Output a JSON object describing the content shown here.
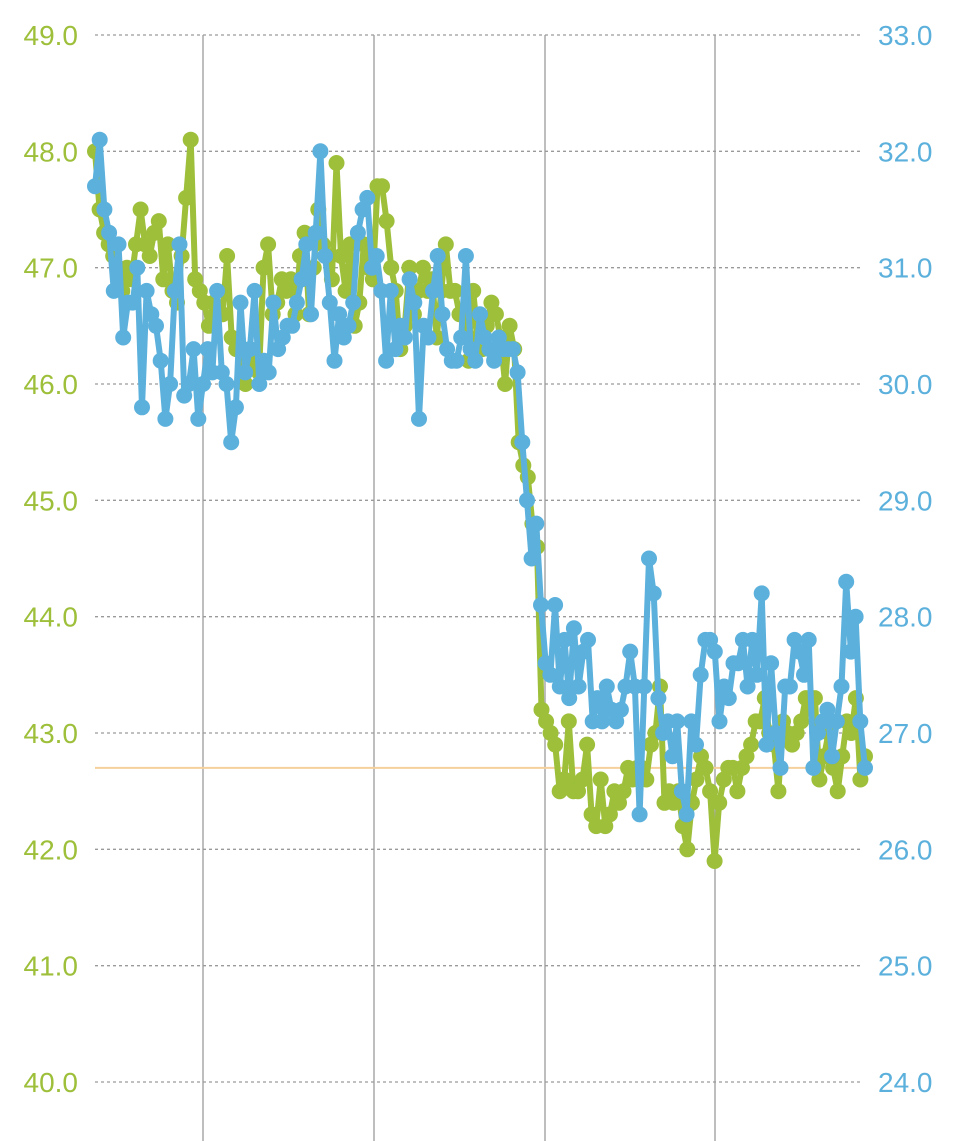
{
  "colors": {
    "left_series": "#9dbf3a",
    "right_series": "#5bb0dc",
    "reference_line": "#f5cf9c",
    "grid": "#9a9a9a",
    "vertical_grid": "#a8a8a8"
  },
  "chart_data": {
    "type": "line",
    "title": "",
    "xlabel": "",
    "grid": true,
    "vertical_gridline_count": 4,
    "left_axis": {
      "ylim": [
        40.0,
        49.0
      ],
      "tick_labels": [
        "49.0",
        "48.0",
        "47.0",
        "46.0",
        "45.0",
        "44.0",
        "43.0",
        "42.0",
        "41.0",
        "40.0"
      ],
      "reference_value": 42.7
    },
    "right_axis": {
      "ylim": [
        24.0,
        33.0
      ],
      "tick_labels": [
        "33.0",
        "32.0",
        "31.0",
        "30.0",
        "29.0",
        "28.0",
        "27.0",
        "26.0",
        "25.0",
        "24.0"
      ]
    },
    "series": [
      {
        "axis": "left",
        "color": "#9dbf3a",
        "values": [
          48.0,
          47.5,
          47.3,
          47.2,
          47.1,
          47.0,
          46.8,
          47.0,
          46.9,
          47.2,
          47.5,
          47.2,
          47.1,
          47.3,
          47.4,
          46.9,
          47.2,
          46.8,
          46.7,
          47.1,
          47.6,
          48.1,
          46.9,
          46.8,
          46.7,
          46.5,
          46.7,
          46.6,
          46.6,
          47.1,
          46.4,
          46.3,
          46.3,
          46.0,
          46.3,
          46.2,
          46.1,
          47.0,
          47.2,
          46.6,
          46.7,
          46.9,
          46.8,
          46.9,
          46.6,
          47.1,
          47.3,
          46.6,
          47.0,
          47.5,
          47.2,
          47.1,
          46.9,
          47.9,
          47.1,
          46.8,
          47.2,
          46.5,
          46.7,
          47.2,
          47.0,
          46.9,
          47.7,
          47.7,
          47.4,
          47.0,
          46.8,
          46.3,
          46.5,
          47.0,
          46.6,
          46.8,
          47.0,
          46.8,
          46.9,
          46.4,
          46.8,
          47.2,
          46.8,
          46.8,
          46.6,
          46.6,
          46.2,
          46.8,
          46.4,
          46.3,
          46.5,
          46.7,
          46.6,
          46.4,
          46.0,
          46.5,
          46.3,
          45.5,
          45.3,
          45.2,
          44.8,
          44.6,
          43.2,
          43.1,
          43.0,
          42.9,
          42.5,
          42.6,
          43.1,
          42.5,
          42.5,
          42.6,
          42.9,
          42.3,
          42.2,
          42.6,
          42.2,
          42.3,
          42.5,
          42.4,
          42.5,
          42.7,
          42.6,
          42.7,
          42.7,
          42.6,
          42.9,
          43.0,
          43.4,
          42.4,
          42.5,
          42.4,
          42.5,
          42.2,
          42.0,
          42.4,
          42.6,
          42.8,
          42.7,
          42.5,
          41.9,
          42.4,
          42.6,
          42.7,
          42.7,
          42.5,
          42.7,
          42.8,
          42.9,
          43.1,
          43.1,
          43.3,
          43.0,
          42.9,
          42.5,
          43.1,
          43.0,
          42.9,
          43.0,
          43.1,
          43.3,
          43.2,
          43.3,
          42.6,
          42.8,
          43.0,
          42.7,
          42.5,
          42.8,
          43.1,
          43.0,
          43.3,
          42.6,
          42.8
        ],
        "x_range": [
          95,
          865
        ]
      },
      {
        "axis": "right",
        "color": "#5bb0dc",
        "values": [
          31.7,
          32.1,
          31.5,
          31.3,
          30.8,
          31.2,
          30.4,
          30.7,
          30.7,
          31.0,
          29.8,
          30.8,
          30.6,
          30.5,
          30.2,
          29.7,
          30.0,
          30.8,
          31.2,
          29.9,
          30.0,
          30.3,
          29.7,
          30.0,
          30.3,
          30.1,
          30.8,
          30.1,
          30.0,
          29.5,
          29.8,
          30.7,
          30.1,
          30.3,
          30.8,
          30.0,
          30.2,
          30.1,
          30.7,
          30.3,
          30.4,
          30.5,
          30.5,
          30.7,
          30.9,
          31.2,
          30.6,
          31.3,
          32.0,
          31.1,
          30.7,
          30.2,
          30.6,
          30.4,
          30.5,
          30.7,
          31.3,
          31.5,
          31.6,
          31.0,
          31.1,
          30.8,
          30.2,
          30.8,
          30.3,
          30.5,
          30.4,
          30.9,
          30.7,
          29.7,
          30.5,
          30.4,
          30.8,
          31.1,
          30.6,
          30.3,
          30.2,
          30.2,
          30.4,
          31.1,
          30.3,
          30.2,
          30.6,
          30.4,
          30.3,
          30.2,
          30.4,
          30.3,
          30.3,
          30.3,
          30.1,
          29.5,
          29.0,
          28.5,
          28.8,
          28.1,
          27.6,
          27.5,
          28.1,
          27.4,
          27.8,
          27.3,
          27.9,
          27.4,
          27.7,
          27.8,
          27.1,
          27.3,
          27.1,
          27.4,
          27.2,
          27.1,
          27.2,
          27.4,
          27.7,
          27.4,
          26.3,
          27.4,
          28.5,
          28.2,
          27.3,
          27.0,
          27.1,
          26.8,
          27.1,
          26.5,
          26.3,
          27.1,
          26.9,
          27.5,
          27.8,
          27.8,
          27.7,
          27.1,
          27.4,
          27.3,
          27.6,
          27.6,
          27.8,
          27.4,
          27.8,
          27.5,
          28.2,
          26.9,
          27.6,
          27.0,
          26.7,
          27.4,
          27.4,
          27.8,
          27.7,
          27.5,
          27.8,
          26.7,
          27.0,
          27.1,
          27.2,
          26.8,
          27.1,
          27.4,
          28.3,
          27.7,
          28.0,
          27.1,
          26.7
        ],
        "x_range": [
          95,
          865
        ]
      }
    ]
  }
}
